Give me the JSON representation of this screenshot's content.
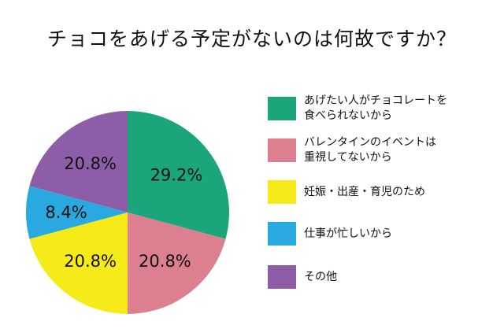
{
  "chart_data": {
    "type": "pie",
    "title": "チョコをあげる予定がないのは何故ですか？",
    "categories": [
      "あげたい人がチョコレートを\n食べられないから",
      "バレンタインのイベントは\n重視してないから",
      "妊娠・出産・育児のため",
      "仕事が忙しいから",
      "その他"
    ],
    "values": [
      29.2,
      20.8,
      20.8,
      8.4,
      20.8
    ],
    "value_labels": [
      "29.2%",
      "20.8%",
      "20.8%",
      "8.4%",
      "20.8%"
    ],
    "colors": [
      "#1aa67a",
      "#dc7f8e",
      "#f6ea18",
      "#29a9e0",
      "#8d5ea7"
    ],
    "start": "12 o'clock, clockwise",
    "legend_position": "right"
  }
}
